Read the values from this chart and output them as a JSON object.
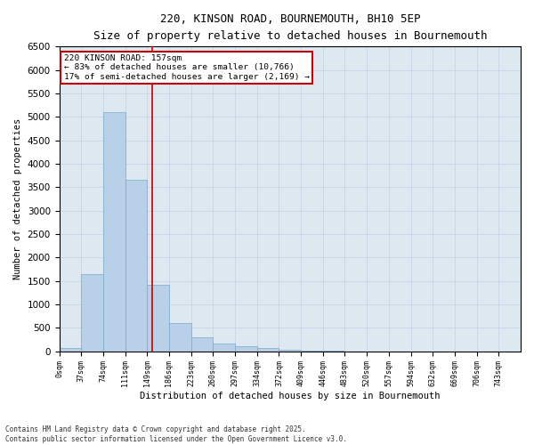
{
  "title_line1": "220, KINSON ROAD, BOURNEMOUTH, BH10 5EP",
  "title_line2": "Size of property relative to detached houses in Bournemouth",
  "xlabel": "Distribution of detached houses by size in Bournemouth",
  "ylabel": "Number of detached properties",
  "bin_labels": [
    "0sqm",
    "37sqm",
    "74sqm",
    "111sqm",
    "149sqm",
    "186sqm",
    "223sqm",
    "260sqm",
    "297sqm",
    "334sqm",
    "372sqm",
    "409sqm",
    "446sqm",
    "483sqm",
    "520sqm",
    "557sqm",
    "594sqm",
    "632sqm",
    "669sqm",
    "706sqm",
    "743sqm"
  ],
  "bar_values": [
    70,
    1650,
    5100,
    3650,
    1420,
    600,
    300,
    160,
    110,
    75,
    40,
    20,
    5,
    0,
    0,
    0,
    0,
    0,
    0,
    0,
    0
  ],
  "bar_color": "#b8d0e8",
  "bar_edge_color": "#7aaacb",
  "vline_color": "#cc0000",
  "vline_x": 4.216,
  "annotation_title": "220 KINSON ROAD: 157sqm",
  "annotation_line1": "← 83% of detached houses are smaller (10,766)",
  "annotation_line2": "17% of semi-detached houses are larger (2,169) →",
  "annotation_box_color": "#cc0000",
  "ylim": [
    0,
    6500
  ],
  "yticks": [
    0,
    500,
    1000,
    1500,
    2000,
    2500,
    3000,
    3500,
    4000,
    4500,
    5000,
    5500,
    6000,
    6500
  ],
  "grid_color": "#c8d8e8",
  "plot_bg_color": "#dde8f0",
  "fig_bg_color": "#ffffff",
  "footer_line1": "Contains HM Land Registry data © Crown copyright and database right 2025.",
  "footer_line2": "Contains public sector information licensed under the Open Government Licence v3.0."
}
